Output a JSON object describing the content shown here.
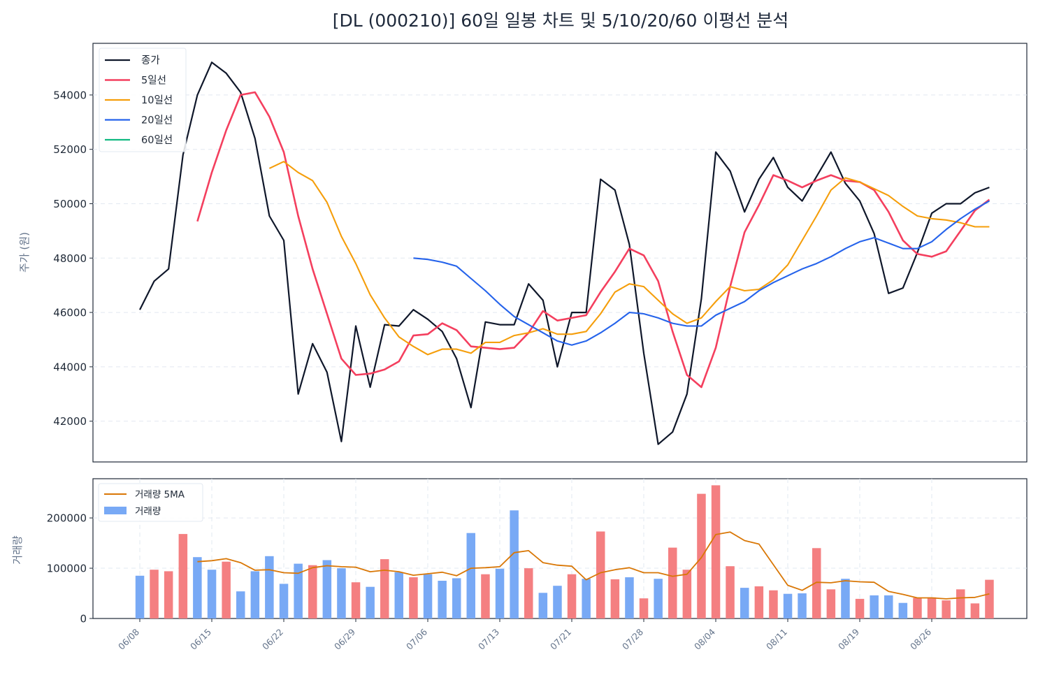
{
  "chart_data": [
    {
      "type": "line",
      "title": "[DL (000210)] 60일 일봉 차트 및 5/10/20/60 이평선 분석",
      "ylabel": "주가 (원)",
      "ylim": [
        40500,
        55900
      ],
      "yticks": [
        42000,
        44000,
        46000,
        48000,
        50000,
        52000,
        54000
      ],
      "grid": true,
      "legend_position": "upper-left",
      "series": [
        {
          "name": "종가",
          "color": "#0f172a",
          "values": [
            46100,
            47150,
            47600,
            51800,
            54000,
            55200,
            54800,
            54100,
            52400,
            49550,
            48650,
            43000,
            44850,
            43800,
            41250,
            45500,
            43250,
            45550,
            45500,
            46100,
            45750,
            45300,
            44300,
            42500,
            45650,
            45550,
            45550,
            47050,
            46450,
            44000,
            46000,
            46000,
            50900,
            50500,
            48500,
            44500,
            41150,
            41600,
            43000,
            46500,
            51900,
            51200,
            49700,
            50900,
            51700,
            50600,
            50100,
            51000,
            51900,
            50750,
            50100,
            48900,
            46700,
            46900,
            48200,
            49650,
            50000,
            50000,
            50400,
            50600
          ]
        },
        {
          "name": "5일선",
          "color": "#f43f5e",
          "values": [
            null,
            null,
            null,
            null,
            49350,
            51150,
            52700,
            54000,
            54100,
            53200,
            51900,
            49550,
            47600,
            45950,
            44300,
            43700,
            43750,
            43900,
            44200,
            45150,
            45200,
            45600,
            45350,
            44750,
            44700,
            44650,
            44700,
            45250,
            46050,
            45700,
            45800,
            45900,
            46750,
            47500,
            48350,
            48100,
            47150,
            45300,
            43700,
            43250,
            44700,
            46950,
            48950,
            49950,
            51050,
            50850,
            50600,
            50850,
            51050,
            50850,
            50800,
            50500,
            49700,
            48650,
            48150,
            48050,
            48250,
            49000,
            49750,
            50150
          ]
        },
        {
          "name": "10일선",
          "color": "#f59e0b",
          "values": [
            null,
            null,
            null,
            null,
            null,
            null,
            null,
            null,
            null,
            51300,
            51550,
            51150,
            50850,
            50050,
            48800,
            47800,
            46650,
            45800,
            45100,
            44750,
            44450,
            44650,
            44650,
            44500,
            44900,
            44900,
            45150,
            45250,
            45400,
            45200,
            45200,
            45300,
            45950,
            46750,
            47050,
            46950,
            46450,
            45950,
            45600,
            45800,
            46400,
            46950,
            46800,
            46850,
            47200,
            47750,
            48650,
            49550,
            50500,
            50950,
            50800,
            50550,
            50300,
            49900,
            49550,
            49450,
            49400,
            49300,
            49150,
            49150
          ]
        },
        {
          "name": "20일선",
          "color": "#2563eb",
          "values": [
            null,
            null,
            null,
            null,
            null,
            null,
            null,
            null,
            null,
            null,
            null,
            null,
            null,
            null,
            null,
            null,
            null,
            null,
            null,
            48000,
            47950,
            47850,
            47700,
            47250,
            46800,
            46300,
            45850,
            45550,
            45250,
            44950,
            44800,
            44950,
            45250,
            45600,
            46000,
            45950,
            45800,
            45600,
            45500,
            45500,
            45900,
            46150,
            46400,
            46800,
            47100,
            47350,
            47600,
            47800,
            48050,
            48350,
            48600,
            48750,
            48550,
            48350,
            48350,
            48600,
            49050,
            49450,
            49800,
            50100
          ]
        },
        {
          "name": "60일선",
          "color": "#10b981",
          "values": []
        }
      ]
    },
    {
      "type": "bar",
      "ylabel": "거래량",
      "ylim": [
        0,
        278000
      ],
      "yticks": [
        0,
        100000,
        200000
      ],
      "grid": true,
      "legend_position": "upper-left",
      "xtick_labels": [
        "06/08",
        "06/15",
        "06/22",
        "06/29",
        "07/06",
        "07/13",
        "07/21",
        "07/28",
        "08/04",
        "08/11",
        "08/19",
        "08/26"
      ],
      "xtick_indices": [
        0,
        5,
        10,
        15,
        20,
        25,
        30,
        35,
        40,
        45,
        50,
        55
      ],
      "up_color": "#f47f81",
      "down_color": "#78a9f5",
      "series": [
        {
          "name": "거래량",
          "values": [
            85000,
            97000,
            94000,
            168000,
            122000,
            97000,
            113000,
            54000,
            94000,
            124000,
            69000,
            109000,
            106000,
            116000,
            100000,
            72000,
            63000,
            118000,
            92000,
            82000,
            88000,
            75000,
            80000,
            170000,
            88000,
            99000,
            215000,
            100000,
            51000,
            65000,
            88000,
            79000,
            173000,
            78000,
            82000,
            40000,
            79000,
            141000,
            97000,
            248000,
            265000,
            104000,
            61000,
            64000,
            56000,
            49000,
            50000,
            140000,
            58000,
            79000,
            39000,
            46000,
            46000,
            31000,
            41000,
            42000,
            36000,
            58000,
            30000,
            77000
          ],
          "up": [
            false,
            true,
            true,
            true,
            false,
            false,
            true,
            false,
            false,
            false,
            false,
            false,
            true,
            false,
            false,
            true,
            false,
            true,
            false,
            true,
            false,
            false,
            false,
            false,
            true,
            false,
            false,
            true,
            false,
            false,
            true,
            false,
            true,
            true,
            false,
            true,
            false,
            true,
            true,
            true,
            true,
            true,
            false,
            true,
            true,
            false,
            false,
            true,
            true,
            false,
            true,
            false,
            false,
            false,
            true,
            true,
            true,
            true,
            true,
            true
          ]
        },
        {
          "name": "거래량 5MA",
          "color": "#d97706",
          "values": [
            null,
            null,
            null,
            null,
            113000,
            115000,
            119000,
            111000,
            96000,
            97000,
            91000,
            90000,
            101000,
            105000,
            103000,
            102000,
            93000,
            96000,
            93000,
            86000,
            89000,
            92000,
            85000,
            100000,
            101000,
            103000,
            131000,
            135000,
            111000,
            106000,
            104000,
            77000,
            91000,
            97000,
            101000,
            91000,
            91000,
            84000,
            88000,
            121000,
            167000,
            172000,
            155000,
            148000,
            107000,
            66000,
            56000,
            72000,
            71000,
            75000,
            73000,
            72000,
            54000,
            48000,
            41000,
            41000,
            39000,
            41000,
            42000,
            49000
          ]
        }
      ]
    }
  ]
}
